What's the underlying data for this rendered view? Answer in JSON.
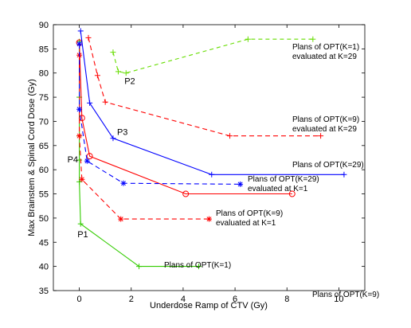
{
  "chart_data": {
    "type": "line",
    "xlabel": "Underdose Ramp of CTV (Gy)",
    "ylabel": "Max Brainstem & Spinal Cord Dose (Gy)",
    "xlim": [
      -1,
      11
    ],
    "ylim": [
      35,
      90
    ],
    "xticks": [
      "0",
      "2",
      "4",
      "6",
      "8",
      "10"
    ],
    "yticks": [
      "35",
      "40",
      "45",
      "50",
      "55",
      "60",
      "65",
      "70",
      "75",
      "80",
      "85",
      "90"
    ],
    "grid": false,
    "series": [
      {
        "name": "Plans of OPT(K=1)",
        "color": "#33cc00",
        "dash": "",
        "marker": "plus",
        "x": [
          0.0,
          0.0,
          0.0,
          0.0,
          0.0,
          0.05,
          2.3,
          4.6
        ],
        "y": [
          86.5,
          75.0,
          67.0,
          62.0,
          57.5,
          48.8,
          40.0,
          40.0
        ]
      },
      {
        "name": "Plans of OPT(K=1)\nevaluated at K=29",
        "color": "#66dd00",
        "dash": "5,4",
        "marker": "plus",
        "x": [
          1.3,
          1.5,
          1.8,
          6.5,
          9.0
        ],
        "y": [
          84.3,
          80.3,
          80.0,
          87.0,
          87.0
        ]
      },
      {
        "name": "Plans of OPT(K=9)",
        "color": "#ff0000",
        "dash": "",
        "marker": "circle",
        "x": [
          0.0,
          0.1,
          0.4,
          4.1,
          8.2
        ],
        "y": [
          86.3,
          70.7,
          62.8,
          55.0,
          55.0
        ]
      },
      {
        "name": "Plans of OPT(K=9)\nevaluated at K=29",
        "color": "#ff0000",
        "dash": "6,4",
        "marker": "plus",
        "x": [
          0.35,
          0.7,
          1.0,
          5.8,
          9.3
        ],
        "y": [
          87.3,
          79.5,
          74.0,
          67.0,
          67.0
        ]
      },
      {
        "name": "Plans of OPT(K=9)\nevaluated at K=1",
        "color": "#ff0000",
        "dash": "6,4",
        "marker": "asterisk",
        "x": [
          0.0,
          0.0,
          0.1,
          1.6,
          5.0
        ],
        "y": [
          83.7,
          67.0,
          58.0,
          49.8,
          49.8
        ]
      },
      {
        "name": "Plans of OPT(K=29)",
        "color": "#0000ff",
        "dash": "",
        "marker": "plus",
        "x": [
          0.05,
          0.4,
          1.3,
          5.1,
          10.2
        ],
        "y": [
          88.7,
          73.8,
          66.5,
          59.0,
          59.0
        ]
      },
      {
        "name": "Plans of OPT(K=29)\nevaluated at K=1",
        "color": "#0000ff",
        "dash": "6,4",
        "marker": "asterisk",
        "x": [
          0.0,
          0.0,
          0.3,
          1.7,
          6.2
        ],
        "y": [
          86.0,
          72.5,
          61.8,
          57.2,
          57.0
        ]
      }
    ],
    "annotations": [
      {
        "text": "P1",
        "x": 0.05,
        "y": 48.8
      },
      {
        "text": "P2",
        "x": 1.8,
        "y": 80.0
      },
      {
        "text": "P3",
        "x": 1.3,
        "y": 66.5
      },
      {
        "text": "P4",
        "x": 0.0,
        "y": 62.0
      }
    ]
  }
}
